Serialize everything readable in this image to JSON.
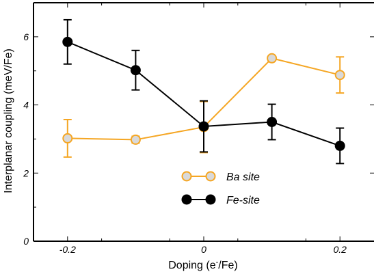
{
  "chart_data": {
    "type": "line",
    "xlabel": "Doping (e",
    "xlabel_sup": "-",
    "xlabel_tail": "/Fe)",
    "ylabel": "Interplanar coupling (meV/Fe)",
    "xlim": [
      -0.25,
      0.25
    ],
    "ylim": [
      0,
      7
    ],
    "x_ticks": [
      -0.2,
      0,
      0.2
    ],
    "x_tick_labels": [
      "-0.2",
      "0",
      "0.2"
    ],
    "y_ticks": [
      0,
      2,
      4,
      6
    ],
    "y_tick_labels": [
      "0",
      "2",
      "4",
      "6"
    ],
    "grid": false,
    "legend_position": "center",
    "series": [
      {
        "name": "Ba site",
        "color": "#f5a623",
        "marker_fill": "#d9d9d9",
        "x": [
          -0.2,
          -0.1,
          0,
          0.1,
          0.2
        ],
        "y": [
          3.02,
          2.98,
          3.35,
          5.37,
          4.88
        ],
        "err": [
          0.55,
          0.1,
          0.75,
          0,
          0.53
        ]
      },
      {
        "name": "Fe-site",
        "color": "#000000",
        "marker_fill": "#000000",
        "x": [
          -0.2,
          -0.1,
          0,
          0.1,
          0.2
        ],
        "y": [
          5.85,
          5.02,
          3.37,
          3.5,
          2.8
        ],
        "err": [
          0.65,
          0.58,
          0.75,
          0.52,
          0.52
        ]
      }
    ]
  }
}
